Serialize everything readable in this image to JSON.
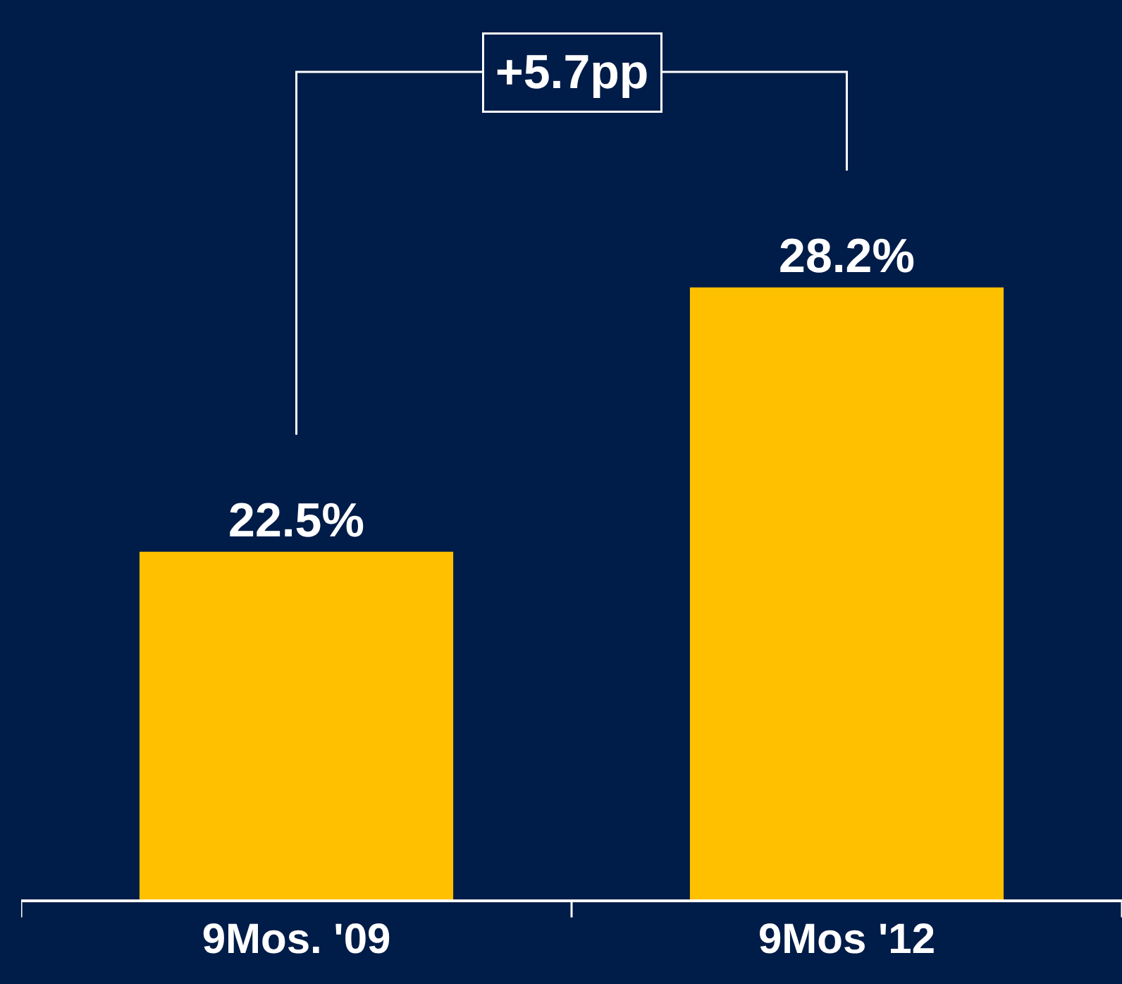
{
  "chart_data": {
    "type": "bar",
    "categories": [
      "9Mos. '09",
      "9Mos '12"
    ],
    "values": [
      22.5,
      28.2
    ],
    "color": "#ffc000",
    "ylim": [
      15,
      34.4
    ],
    "data_labels": true,
    "value_labels": [
      "22.5%",
      "28.2%"
    ],
    "annotations": [
      "+5.7pp"
    ],
    "grid": false,
    "legend": false
  }
}
